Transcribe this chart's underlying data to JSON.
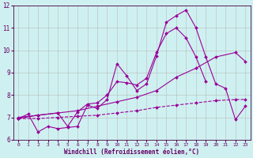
{
  "background_color": "#cff0f0",
  "grid_color": "#b0b0b0",
  "line_color": "#990099",
  "xlabel": "Windchill (Refroidissement éolien,°C)",
  "xlim": [
    -0.5,
    23.5
  ],
  "ylim": [
    6,
    12
  ],
  "yticks": [
    6,
    7,
    8,
    9,
    10,
    11,
    12
  ],
  "xticks": [
    0,
    1,
    2,
    3,
    4,
    5,
    6,
    7,
    8,
    9,
    10,
    11,
    12,
    13,
    14,
    15,
    16,
    17,
    18,
    19,
    20,
    21,
    22,
    23
  ],
  "series1": {
    "x": [
      0,
      1,
      2,
      3,
      4,
      5,
      6,
      7,
      8,
      9,
      10,
      11,
      12,
      13,
      14,
      15,
      16,
      17,
      18,
      19,
      20,
      21,
      22,
      23
    ],
    "y": [
      6.95,
      7.15,
      6.35,
      6.6,
      6.5,
      6.55,
      6.6,
      7.55,
      7.4,
      7.8,
      9.4,
      8.85,
      8.2,
      8.5,
      9.75,
      11.25,
      11.55,
      11.8,
      11.0,
      9.7,
      8.5,
      8.3,
      6.9,
      7.5
    ]
  },
  "series2": {
    "x": [
      0,
      2,
      4,
      5,
      6,
      7,
      8,
      9,
      10,
      11,
      12,
      13,
      14,
      15,
      16,
      17,
      18,
      19,
      20,
      21,
      22,
      23
    ],
    "y": [
      6.95,
      7.1,
      7.2,
      6.6,
      7.25,
      7.6,
      7.65,
      8.0,
      8.6,
      8.55,
      8.45,
      8.75,
      9.9,
      10.75,
      11.0,
      10.55,
      9.7,
      8.6,
      null,
      null,
      null,
      null
    ]
  },
  "series3": {
    "x": [
      0,
      2,
      4,
      6,
      8,
      10,
      12,
      14,
      16,
      18,
      20,
      22,
      23
    ],
    "y": [
      7.0,
      7.1,
      7.2,
      7.3,
      7.5,
      7.7,
      7.9,
      8.2,
      8.8,
      9.2,
      9.7,
      9.9,
      9.5
    ]
  },
  "series4": {
    "x": [
      0,
      2,
      4,
      6,
      8,
      10,
      12,
      14,
      16,
      18,
      20,
      22,
      23
    ],
    "y": [
      6.95,
      6.95,
      7.0,
      7.05,
      7.1,
      7.2,
      7.3,
      7.45,
      7.55,
      7.65,
      7.75,
      7.8,
      7.8
    ]
  }
}
